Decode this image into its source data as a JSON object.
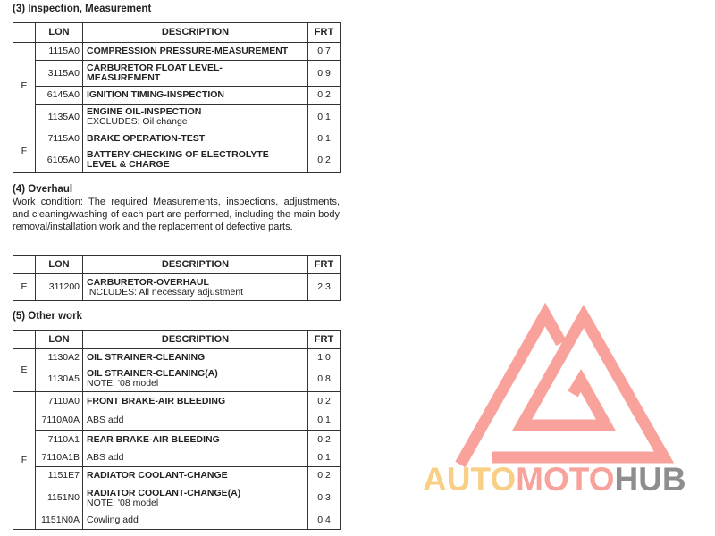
{
  "section3": {
    "title": "(3) Inspection, Measurement",
    "headers": [
      "",
      "LON",
      "DESCRIPTION",
      "FRT"
    ],
    "rows": [
      {
        "group": "E",
        "lon": "1115A0",
        "desc": "COMPRESSION PRESSURE-MEASUREMENT",
        "note": "",
        "frt": "0.7"
      },
      {
        "lon": "3115A0",
        "desc": "CARBURETOR FLOAT LEVEL-MEASUREMENT",
        "note": "",
        "frt": "0.9"
      },
      {
        "lon": "6145A0",
        "desc": "IGNITION TIMING-INSPECTION",
        "note": "",
        "frt": "0.2"
      },
      {
        "lon": "1135A0",
        "desc": "ENGINE OIL-INSPECTION",
        "note": "EXCLUDES: Oil change",
        "frt": "0.1"
      },
      {
        "group": "F",
        "lon": "7115A0",
        "desc": "BRAKE OPERATION-TEST",
        "note": "",
        "frt": "0.1"
      },
      {
        "lon": "6105A0",
        "desc": "BATTERY-CHECKING OF ELECTROLYTE LEVEL & CHARGE",
        "note": "",
        "frt": "0.2"
      }
    ]
  },
  "section4": {
    "title": "(4) Overhaul",
    "text": "Work condition: The required Measurements, inspections, adjustments, and cleaning/washing of each part are performed, including the main body removal/installation work and the replacement of defective parts.",
    "headers": [
      "",
      "LON",
      "DESCRIPTION",
      "FRT"
    ],
    "rows": [
      {
        "group": "E",
        "lon": "311200",
        "desc": "CARBURETOR-OVERHAUL",
        "note": "INCLUDES: All necessary adjustment",
        "frt": "2.3"
      }
    ]
  },
  "section5": {
    "title": "(5) Other work",
    "headers": [
      "",
      "LON",
      "DESCRIPTION",
      "FRT"
    ],
    "rows": [
      {
        "group": "E",
        "lon": "1130A2",
        "desc": "OIL STRAINER-CLEANING",
        "note": "",
        "frt": "1.0"
      },
      {
        "lon": "1130A5",
        "desc": "OIL STRAINER-CLEANING(A)",
        "note": "NOTE: '08 model",
        "frt": "0.8"
      },
      {
        "group": "F",
        "lon": "7110A0",
        "desc": "FRONT BRAKE-AIR BLEEDING",
        "note": "",
        "frt": "0.2"
      },
      {
        "lon": "7110A0A",
        "desc": "",
        "note": "ABS add",
        "frt": "0.1"
      },
      {
        "lon": "7110A1",
        "desc": "REAR BRAKE-AIR BLEEDING",
        "note": "",
        "frt": "0.2"
      },
      {
        "lon": "7110A1B",
        "desc": "",
        "note": "ABS add",
        "frt": "0.1"
      },
      {
        "lon": "1151E7",
        "desc": "RADIATOR COOLANT-CHANGE",
        "note": "",
        "frt": "0.2"
      },
      {
        "lon": "1151N0",
        "desc": "RADIATOR COOLANT-CHANGE(A)",
        "note": "NOTE: '08 model",
        "frt": "0.3"
      },
      {
        "lon": "1151N0A",
        "desc": "",
        "note": "Cowling add",
        "frt": "0.4"
      }
    ]
  },
  "watermark": {
    "part1": "AUTO",
    "part2": "MOTO",
    "part3": "HUB",
    "colors": {
      "auto": "#f9cf86",
      "moto": "#f8a29b",
      "hub": "#8e8e8e",
      "mark": "#f8a29b"
    }
  }
}
